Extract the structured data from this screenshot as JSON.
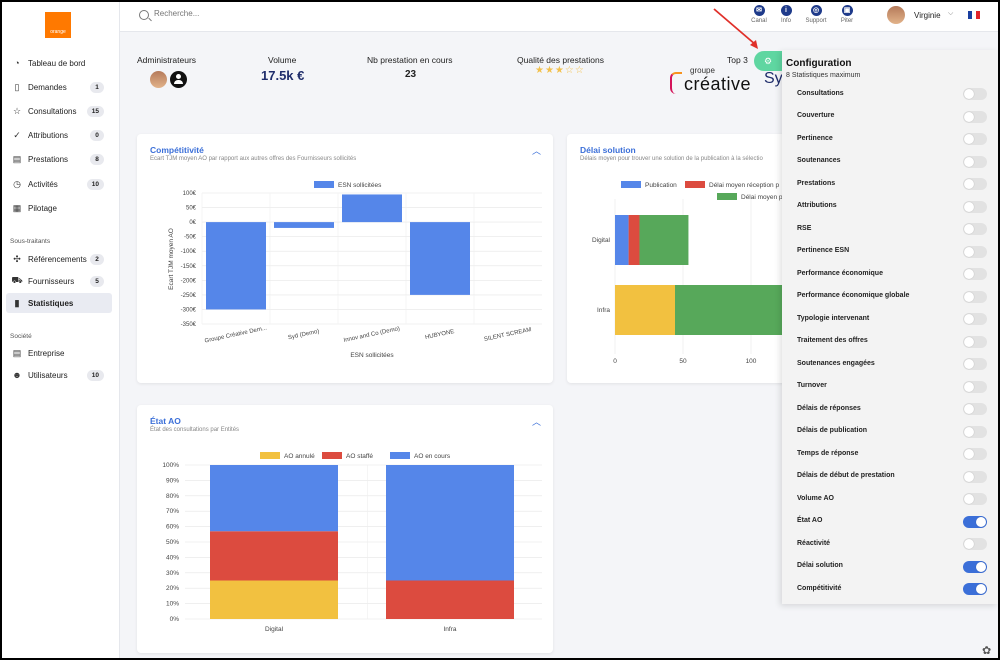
{
  "sidebar": {
    "items": [
      {
        "label": "Tableau de bord",
        "icon": "dashboard-icon",
        "glyph": "◔",
        "badge": ""
      },
      {
        "label": "Demandes",
        "icon": "document-icon",
        "glyph": "▯",
        "badge": "1"
      },
      {
        "label": "Consultations",
        "icon": "star-icon",
        "glyph": "☆",
        "badge": "15"
      },
      {
        "label": "Attributions",
        "icon": "checks-icon",
        "glyph": "✓",
        "badge": "0"
      },
      {
        "label": "Prestations",
        "icon": "file-icon",
        "glyph": "▤",
        "badge": "8"
      },
      {
        "label": "Activités",
        "icon": "clock-icon",
        "glyph": "◷",
        "badge": "10"
      },
      {
        "label": "Pilotage",
        "icon": "report-icon",
        "glyph": "▦",
        "badge": ""
      }
    ],
    "section_sous_traitants": "Sous-traitants",
    "items2": [
      {
        "label": "Référencements",
        "icon": "network-icon",
        "glyph": "✣",
        "badge": "2"
      },
      {
        "label": "Fournisseurs",
        "icon": "truck-icon",
        "glyph": "⛟",
        "badge": "5"
      },
      {
        "label": "Statistiques",
        "icon": "chart-icon",
        "glyph": "▮",
        "badge": ""
      }
    ],
    "section_societe": "Société",
    "items3": [
      {
        "label": "Entreprise",
        "icon": "building-icon",
        "glyph": "▤",
        "badge": ""
      },
      {
        "label": "Utilisateurs",
        "icon": "users-icon",
        "glyph": "☻",
        "badge": "10"
      }
    ]
  },
  "topbar": {
    "search_placeholder": "Recherche...",
    "items": [
      {
        "label": "Canal",
        "glyph": "✉"
      },
      {
        "label": "Info",
        "glyph": "i"
      },
      {
        "label": "Support",
        "glyph": "◎"
      },
      {
        "label": "Piter",
        "glyph": "▣"
      }
    ],
    "user": "Virginie",
    "chevron": "⌵"
  },
  "kpis": {
    "admins_label": "Administrateurs",
    "volume_label": "Volume",
    "volume_value": "17.5k €",
    "presta_label": "Nb prestation en cours",
    "presta_value": "23",
    "qualite_label": "Qualité des prestations",
    "qualite_stars": "★★★☆☆",
    "top3_label": "Top 3",
    "top3_brand_small": "groupe",
    "top3_brand": "créative",
    "top3_brand2": "Sy"
  },
  "cards": {
    "competitivite": {
      "title": "Compétitivité",
      "subtitle": "Ecart TJM moyen AO par rapport aux autres offres des Fournisseurs sollicités",
      "collapse": "︿"
    },
    "delai": {
      "title": "Délai solution",
      "subtitle": "Délais moyen pour trouver une solution de la publication à la sélectio",
      "collapse": "︿"
    },
    "etat": {
      "title": "État AO",
      "subtitle": "État des consultations par Entités",
      "collapse": "︿"
    }
  },
  "config": {
    "title": "Configuration",
    "subtitle": "8 Statistiques maximum",
    "gear": "⚙",
    "items": [
      {
        "label": "Consultations",
        "on": false
      },
      {
        "label": "Couverture",
        "on": false
      },
      {
        "label": "Pertinence",
        "on": false
      },
      {
        "label": "Soutenances",
        "on": false
      },
      {
        "label": "Prestations",
        "on": false
      },
      {
        "label": "Attributions",
        "on": false
      },
      {
        "label": "RSE",
        "on": false
      },
      {
        "label": "Pertinence ESN",
        "on": false
      },
      {
        "label": "Performance économique",
        "on": false
      },
      {
        "label": "Performance économique globale",
        "on": false
      },
      {
        "label": "Typologie intervenant",
        "on": false
      },
      {
        "label": "Traitement des offres",
        "on": false
      },
      {
        "label": "Soutenances engagées",
        "on": false
      },
      {
        "label": "Turnover",
        "on": false
      },
      {
        "label": "Délais de réponses",
        "on": false
      },
      {
        "label": "Délais de publication",
        "on": false
      },
      {
        "label": "Temps de réponse",
        "on": false
      },
      {
        "label": "Délais de début de prestation",
        "on": false
      },
      {
        "label": "Volume AO",
        "on": false
      },
      {
        "label": "État AO",
        "on": true
      },
      {
        "label": "Réactivité",
        "on": false
      },
      {
        "label": "Délai solution",
        "on": true
      },
      {
        "label": "Compétitivité",
        "on": true
      }
    ]
  },
  "colors": {
    "blue": "#5586e9",
    "red": "#dc4b3f",
    "green": "#57a85a",
    "yellow": "#f2c140",
    "accent": "#3b6fd8"
  },
  "chart_data": [
    {
      "type": "bar",
      "title": "",
      "legend": [
        "ESN sollicitées"
      ],
      "categories": [
        "Groupe Créative Dem...",
        "Syd (Demo)",
        "Innov and Co (Demo)",
        "HUBYONE",
        "SILENT SCREAM"
      ],
      "series": [
        {
          "name": "ESN sollicitées",
          "values": [
            -300,
            -20,
            95,
            -250,
            0
          ]
        }
      ],
      "xlabel": "ESN sollicitées",
      "ylabel": "Ecart TJM moyen AO",
      "ylim": [
        -350,
        100
      ],
      "yticks": [
        "100€",
        "50€",
        "0€",
        "-50€",
        "-100€",
        "-150€",
        "-200€",
        "-250€",
        "-300€",
        "-350€"
      ],
      "grid": true
    },
    {
      "type": "bar",
      "orientation": "horizontal",
      "stacked": true,
      "legend": [
        "Publication",
        "Délai moyen réception p",
        "Délai moyen p"
      ],
      "categories": [
        "Digital",
        "Infra"
      ],
      "series": [
        {
          "name": "Publication",
          "values": [
            10,
            0
          ]
        },
        {
          "name": "Délai moyen réception p",
          "values": [
            8,
            0
          ]
        },
        {
          "name": "Délai moyen p",
          "values": [
            36,
            45
          ]
        }
      ],
      "xticks": [
        "0",
        "50",
        "100"
      ]
    },
    {
      "type": "bar",
      "stacked": true,
      "legend": [
        "AO annulé",
        "AO staffé",
        "AO en cours"
      ],
      "categories": [
        "Digital",
        "Infra"
      ],
      "series": [
        {
          "name": "AO annulé",
          "values": [
            25,
            0
          ]
        },
        {
          "name": "AO staffé",
          "values": [
            32,
            25
          ]
        },
        {
          "name": "AO en cours",
          "values": [
            43,
            75
          ]
        }
      ],
      "ylim": [
        0,
        100
      ],
      "yticks": [
        "100%",
        "90%",
        "80%",
        "70%",
        "60%",
        "50%",
        "40%",
        "30%",
        "20%",
        "10%",
        "0%"
      ]
    }
  ]
}
